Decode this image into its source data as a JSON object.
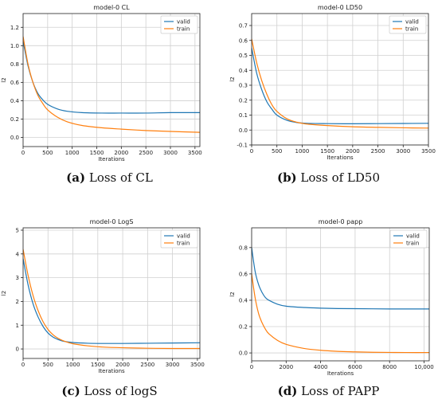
{
  "colors": {
    "valid": "#1f77b4",
    "train": "#ff7f0e",
    "grid": "#d0d0d0"
  },
  "chart_data": [
    {
      "type": "line",
      "title": "model-0 CL",
      "xlabel": "Iterations",
      "ylabel": "l2",
      "xlim": [
        0,
        3600
      ],
      "ylim": [
        -0.1,
        1.35
      ],
      "xticks": [
        0,
        500,
        1000,
        1500,
        2000,
        2500,
        3000,
        3500
      ],
      "xticklabels": [
        "0",
        "500",
        "1000",
        "1500",
        "2000",
        "2500",
        "3000",
        "3500"
      ],
      "yticks": [
        0.0,
        0.2,
        0.4,
        0.6,
        0.8,
        1.0,
        1.2
      ],
      "yticklabels": [
        "0.0",
        "0.2",
        "0.4",
        "0.6",
        "0.8",
        "1.0",
        "1.2"
      ],
      "grid": true,
      "legend_position": "top-right",
      "series": [
        {
          "name": "valid",
          "x": [
            0,
            100,
            200,
            300,
            400,
            500,
            700,
            900,
            1200,
            1600,
            2000,
            2500,
            3000,
            3600
          ],
          "y": [
            1.05,
            0.78,
            0.6,
            0.48,
            0.41,
            0.36,
            0.31,
            0.285,
            0.27,
            0.265,
            0.265,
            0.265,
            0.27,
            0.27
          ]
        },
        {
          "name": "train",
          "x": [
            0,
            100,
            200,
            300,
            400,
            500,
            700,
            900,
            1200,
            1600,
            2000,
            2500,
            3000,
            3600
          ],
          "y": [
            1.1,
            0.8,
            0.6,
            0.46,
            0.37,
            0.3,
            0.22,
            0.17,
            0.13,
            0.105,
            0.09,
            0.075,
            0.065,
            0.055
          ]
        }
      ]
    },
    {
      "type": "line",
      "title": "model-0 LD50",
      "xlabel": "Iterations",
      "ylabel": "l2",
      "xlim": [
        0,
        3500
      ],
      "ylim": [
        -0.1,
        0.78
      ],
      "xticks": [
        0,
        500,
        1000,
        1500,
        2000,
        2500,
        3000,
        3500
      ],
      "xticklabels": [
        "0",
        "500",
        "1000",
        "1500",
        "2000",
        "2500",
        "3000",
        "3500"
      ],
      "yticks": [
        -0.1,
        0.0,
        0.1,
        0.2,
        0.3,
        0.4,
        0.5,
        0.6,
        0.7
      ],
      "yticklabels": [
        "-0.1",
        "0.0",
        "0.1",
        "0.2",
        "0.3",
        "0.4",
        "0.5",
        "0.6",
        "0.7"
      ],
      "grid": true,
      "legend_position": "top-right",
      "series": [
        {
          "name": "valid",
          "x": [
            0,
            100,
            200,
            300,
            400,
            500,
            700,
            900,
            1100,
            1500,
            2000,
            2500,
            3000,
            3500
          ],
          "y": [
            0.55,
            0.38,
            0.27,
            0.19,
            0.14,
            0.1,
            0.065,
            0.05,
            0.045,
            0.043,
            0.042,
            0.043,
            0.044,
            0.045
          ]
        },
        {
          "name": "train",
          "x": [
            0,
            100,
            200,
            300,
            400,
            500,
            700,
            900,
            1100,
            1500,
            2000,
            2500,
            3000,
            3500
          ],
          "y": [
            0.61,
            0.45,
            0.33,
            0.24,
            0.17,
            0.125,
            0.075,
            0.052,
            0.04,
            0.03,
            0.022,
            0.018,
            0.015,
            0.013
          ]
        }
      ]
    },
    {
      "type": "line",
      "title": "model-0 LogS",
      "xlabel": "Iterations",
      "ylabel": "l2",
      "xlim": [
        0,
        3550
      ],
      "ylim": [
        -0.4,
        5.1
      ],
      "xticks": [
        0,
        500,
        1000,
        1500,
        2000,
        2500,
        3000,
        3500
      ],
      "xticklabels": [
        "0",
        "500",
        "1000",
        "1500",
        "2000",
        "2500",
        "3000",
        "3500"
      ],
      "yticks": [
        0,
        1,
        2,
        3,
        4,
        5
      ],
      "yticklabels": [
        "0",
        "1",
        "2",
        "3",
        "4",
        "5"
      ],
      "grid": true,
      "legend_position": "top-right",
      "series": [
        {
          "name": "valid",
          "x": [
            0,
            100,
            200,
            300,
            400,
            500,
            600,
            700,
            800,
            1000,
            1300,
            1600,
            2000,
            2500,
            3000,
            3550
          ],
          "y": [
            3.8,
            2.7,
            1.9,
            1.35,
            0.95,
            0.67,
            0.5,
            0.4,
            0.33,
            0.27,
            0.24,
            0.23,
            0.23,
            0.24,
            0.25,
            0.26
          ]
        },
        {
          "name": "train",
          "x": [
            0,
            100,
            200,
            300,
            400,
            500,
            600,
            700,
            800,
            1000,
            1300,
            1600,
            2000,
            2500,
            3000,
            3550
          ],
          "y": [
            4.2,
            3.1,
            2.25,
            1.62,
            1.15,
            0.82,
            0.6,
            0.45,
            0.35,
            0.22,
            0.13,
            0.08,
            0.05,
            0.03,
            0.02,
            0.02
          ]
        }
      ]
    },
    {
      "type": "line",
      "title": "model-0 papp",
      "xlabel": "Iterations",
      "ylabel": "l2",
      "xlim": [
        0,
        10300
      ],
      "ylim": [
        -0.06,
        0.95
      ],
      "xticks": [
        0,
        2000,
        4000,
        6000,
        8000,
        10000
      ],
      "xticklabels": [
        "0",
        "2000",
        "4000",
        "6000",
        "8000",
        "10,000"
      ],
      "yticks": [
        0.0,
        0.2,
        0.4,
        0.6,
        0.8
      ],
      "yticklabels": [
        "0.0",
        "0.2",
        "0.4",
        "0.6",
        "0.8"
      ],
      "grid": true,
      "legend_position": "top-right",
      "series": [
        {
          "name": "valid",
          "x": [
            0,
            200,
            400,
            600,
            800,
            1000,
            1500,
            2000,
            3000,
            4000,
            5000,
            6000,
            7000,
            8000,
            9000,
            10300
          ],
          "y": [
            0.8,
            0.62,
            0.52,
            0.46,
            0.42,
            0.4,
            0.37,
            0.355,
            0.345,
            0.34,
            0.337,
            0.336,
            0.335,
            0.334,
            0.334,
            0.334
          ]
        },
        {
          "name": "train",
          "x": [
            0,
            200,
            400,
            600,
            800,
            1000,
            1500,
            2000,
            3000,
            4000,
            5000,
            6000,
            7000,
            8000,
            9000,
            10300
          ],
          "y": [
            0.6,
            0.42,
            0.3,
            0.23,
            0.18,
            0.145,
            0.095,
            0.065,
            0.035,
            0.02,
            0.012,
            0.008,
            0.005,
            0.004,
            0.003,
            0.003
          ]
        }
      ]
    }
  ],
  "captions": [
    {
      "letter": "(a)",
      "text": " Loss of CL"
    },
    {
      "letter": "(b)",
      "text": " Loss of LD50"
    },
    {
      "letter": "(c)",
      "text": " Loss of logS"
    },
    {
      "letter": "(d)",
      "text": " Loss of PAPP"
    }
  ]
}
